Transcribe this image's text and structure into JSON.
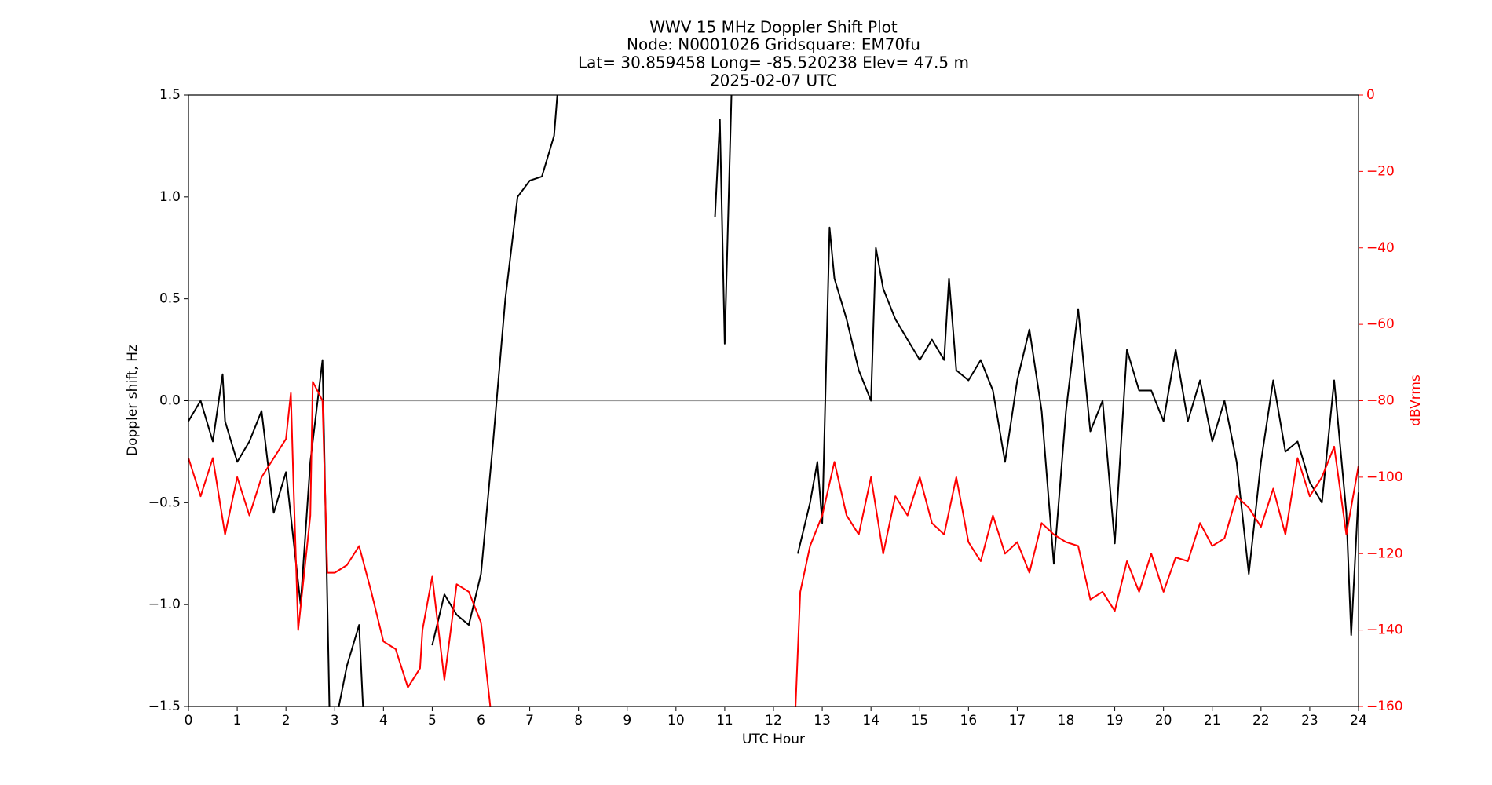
{
  "chart_data": {
    "type": "line",
    "title_lines": [
      "WWV 15 MHz Doppler Shift Plot",
      "Node:  N0001026     Gridsquare:  EM70fu",
      "Lat= 30.859458    Long= -85.520238    Elev= 47.5 m",
      "2025-02-07  UTC"
    ],
    "xlabel": "UTC Hour",
    "ylabel": "Doppler shift, Hz",
    "y2label": "dBVrms",
    "y2color": "#ff0000",
    "xlim": [
      0,
      24
    ],
    "xticks": [
      0,
      1,
      2,
      3,
      4,
      5,
      6,
      7,
      8,
      9,
      10,
      11,
      12,
      13,
      14,
      15,
      16,
      17,
      18,
      19,
      20,
      21,
      22,
      23,
      24
    ],
    "ylim": [
      -1.5,
      1.5
    ],
    "yticks": [
      {
        "value": -1.5,
        "label": "−1.5"
      },
      {
        "value": -1.0,
        "label": "−1.0"
      },
      {
        "value": -0.5,
        "label": "−0.5"
      },
      {
        "value": 0,
        "label": "0.0"
      },
      {
        "value": 0.5,
        "label": "0.5"
      },
      {
        "value": 1.0,
        "label": "1.0"
      },
      {
        "value": 1.5,
        "label": "1.5"
      }
    ],
    "y2lim": [
      -160,
      0
    ],
    "y2ticks": [
      {
        "value": -160,
        "label": "−160"
      },
      {
        "value": -140,
        "label": "−140"
      },
      {
        "value": -120,
        "label": "−120"
      },
      {
        "value": -100,
        "label": "−100"
      },
      {
        "value": -80,
        "label": "−80"
      },
      {
        "value": -60,
        "label": "−60"
      },
      {
        "value": -40,
        "label": "−40"
      },
      {
        "value": -20,
        "label": "−20"
      },
      0
    ],
    "hline": {
      "value": 0,
      "color": "#999999"
    },
    "series": [
      {
        "color": "#000000",
        "x": [
          0,
          0.25,
          0.5,
          0.7,
          0.75,
          1.0,
          1.25,
          1.5,
          1.75,
          2.0,
          2.3,
          2.5,
          2.75,
          2.9,
          3.0,
          3.25,
          3.5,
          3.6,
          4.9,
          5.0,
          5.25,
          5.5,
          5.75,
          6.0,
          6.25,
          6.5,
          6.75,
          7.0,
          7.25,
          7.5,
          7.6,
          10.7,
          10.8,
          10.9,
          11.0,
          11.15,
          12.45,
          12.5,
          12.75,
          12.9,
          13.0,
          13.15,
          13.25,
          13.5,
          13.75,
          14.0,
          14.1,
          14.25,
          14.5,
          14.75,
          15.0,
          15.25,
          15.5,
          15.6,
          15.75,
          16.0,
          16.25,
          16.5,
          16.75,
          17.0,
          17.25,
          17.5,
          17.75,
          18.0,
          18.25,
          18.5,
          18.75,
          19.0,
          19.25,
          19.5,
          19.75,
          20.0,
          20.25,
          20.5,
          20.75,
          21.0,
          21.25,
          21.5,
          21.75,
          22.0,
          22.25,
          22.5,
          22.75,
          23.0,
          23.25,
          23.5,
          23.75,
          23.85,
          24.0
        ],
        "values": [
          -0.1,
          0.0,
          -0.2,
          0.13,
          -0.1,
          -0.3,
          -0.2,
          -0.05,
          -0.55,
          -0.35,
          -1.0,
          -0.3,
          0.2,
          -1.6,
          -1.6,
          -1.3,
          -1.1,
          -1.6,
          null,
          -1.2,
          -0.95,
          -1.05,
          -1.1,
          -0.85,
          -0.2,
          0.5,
          1.0,
          1.08,
          1.1,
          1.3,
          1.6,
          null,
          0.9,
          1.38,
          0.28,
          1.6,
          null,
          -0.75,
          -0.5,
          -0.3,
          -0.6,
          0.85,
          0.6,
          0.4,
          0.15,
          0.0,
          0.75,
          0.55,
          0.4,
          0.3,
          0.2,
          0.3,
          0.2,
          0.6,
          0.15,
          0.1,
          0.2,
          0.05,
          -0.3,
          0.1,
          0.35,
          -0.05,
          -0.8,
          -0.05,
          0.45,
          -0.15,
          0.0,
          -0.7,
          0.25,
          0.05,
          0.05,
          -0.1,
          0.25,
          -0.1,
          0.1,
          -0.2,
          0.0,
          -0.3,
          -0.85,
          -0.3,
          0.1,
          -0.25,
          -0.2,
          -0.4,
          -0.5,
          0.1,
          -0.55,
          -1.15,
          -0.45
        ]
      },
      {
        "color": "#ff0000",
        "axis": "y2",
        "x": [
          0,
          0.25,
          0.5,
          0.75,
          1.0,
          1.25,
          1.5,
          1.75,
          2.0,
          2.1,
          2.15,
          2.25,
          2.5,
          2.55,
          2.75,
          2.85,
          3.0,
          3.25,
          3.5,
          3.75,
          4.0,
          4.25,
          4.5,
          4.75,
          4.8,
          5.0,
          5.25,
          5.5,
          5.75,
          6.0,
          6.2,
          6.3,
          12.45,
          12.55,
          12.75,
          13.0,
          13.25,
          13.5,
          13.75,
          14.0,
          14.25,
          14.5,
          14.75,
          15.0,
          15.25,
          15.5,
          15.75,
          16.0,
          16.25,
          16.5,
          16.75,
          17.0,
          17.25,
          17.5,
          17.75,
          18.0,
          18.25,
          18.5,
          18.75,
          19.0,
          19.25,
          19.5,
          19.75,
          20.0,
          20.25,
          20.5,
          20.75,
          21.0,
          21.25,
          21.5,
          21.75,
          22.0,
          22.25,
          22.5,
          22.75,
          23.0,
          23.25,
          23.5,
          23.75,
          24.0
        ],
        "values": [
          -95,
          -105,
          -95,
          -115,
          -100,
          -110,
          -100,
          -95,
          -90,
          -78,
          -100,
          -140,
          -110,
          -75,
          -80,
          -125,
          -125,
          -123,
          -118,
          -130,
          -143,
          -145,
          -155,
          -150,
          -140,
          -126,
          -153,
          -128,
          -130,
          -138,
          -161,
          null,
          -161,
          -130,
          -118,
          -110,
          -96,
          -110,
          -115,
          -100,
          -120,
          -105,
          -110,
          -100,
          -112,
          -115,
          -100,
          -117,
          -122,
          -110,
          -120,
          -117,
          -125,
          -112,
          -115,
          -117,
          -118,
          -132,
          -130,
          -135,
          -122,
          -130,
          -120,
          -130,
          -121,
          -122,
          -112,
          -118,
          -116,
          -105,
          -108,
          -113,
          -103,
          -115,
          -95,
          -105,
          -100,
          -92,
          -115,
          -97
        ]
      }
    ]
  }
}
